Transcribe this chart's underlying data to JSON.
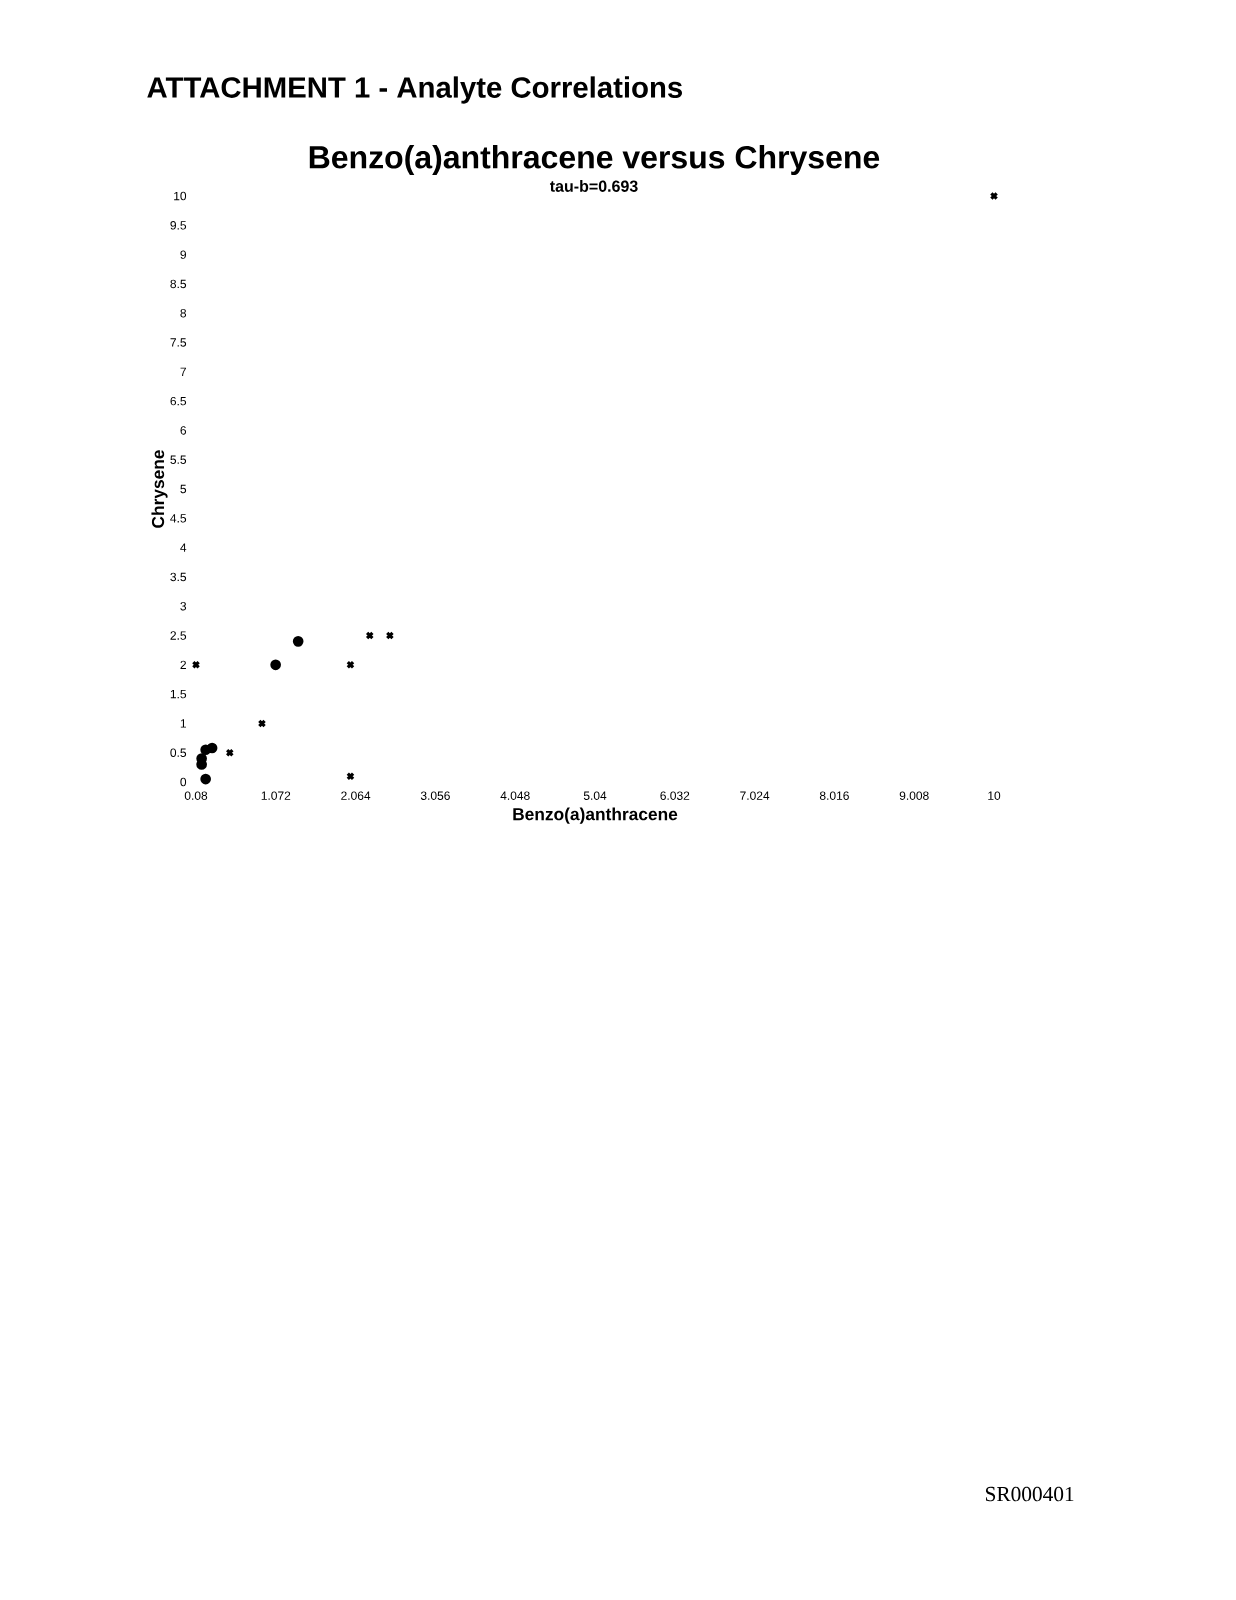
{
  "chart_data": {
    "type": "scatter",
    "title": "Benzo(a)anthracene versus Chrysene",
    "subtitle": "tau-b=0.693",
    "xlabel": "Benzo(a)anthracene",
    "ylabel": "Chrysene",
    "annotations": [
      "ATTACHMENT 1 - Analyte Correlations",
      "SR000401"
    ],
    "xlim": [
      0.08,
      10
    ],
    "xticks": [
      0.08,
      1.072,
      2.064,
      3.056,
      4.048,
      5.04,
      6.032,
      7.024,
      8.016,
      9.008,
      10
    ],
    "ylim": [
      0,
      10
    ],
    "yticks": [
      0,
      0.5,
      1,
      1.5,
      2,
      2.5,
      3,
      3.5,
      4,
      4.5,
      5,
      5.5,
      6,
      6.5,
      7,
      7.5,
      8,
      8.5,
      9,
      9.5,
      10
    ],
    "series": [
      {
        "color": "#000000",
        "marker": "cross",
        "x": [
          0.08,
          10,
          0.9,
          0.5,
          2.0,
          2.24,
          2.49,
          2.0
        ],
        "values": [
          2,
          10,
          1,
          0.5,
          2,
          2.5,
          2.5,
          0.1
        ]
      },
      {
        "color": "#000000",
        "marker": "circle",
        "x": [
          1.35,
          1.07,
          0.28,
          0.2,
          0.15,
          0.15,
          0.2
        ],
        "values": [
          2.4,
          2,
          0.58,
          0.55,
          0.4,
          0.3,
          0.05
        ]
      }
    ]
  }
}
